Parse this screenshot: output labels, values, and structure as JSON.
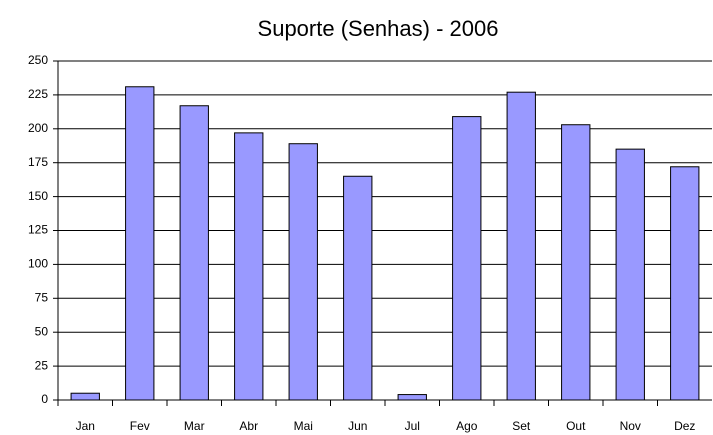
{
  "chart_data": {
    "type": "bar",
    "title": "Suporte (Senhas) - 2006",
    "categories": [
      "Jan",
      "Fev",
      "Mar",
      "Abr",
      "Mai",
      "Jun",
      "Jul",
      "Ago",
      "Set",
      "Out",
      "Nov",
      "Dez"
    ],
    "values": [
      5,
      231,
      217,
      197,
      189,
      165,
      4,
      209,
      227,
      203,
      185,
      172
    ],
    "color": "#9999ff",
    "ylim": [
      0,
      250
    ],
    "yticks": [
      0,
      25,
      50,
      75,
      100,
      125,
      150,
      175,
      200,
      225,
      250
    ],
    "grid": true
  }
}
